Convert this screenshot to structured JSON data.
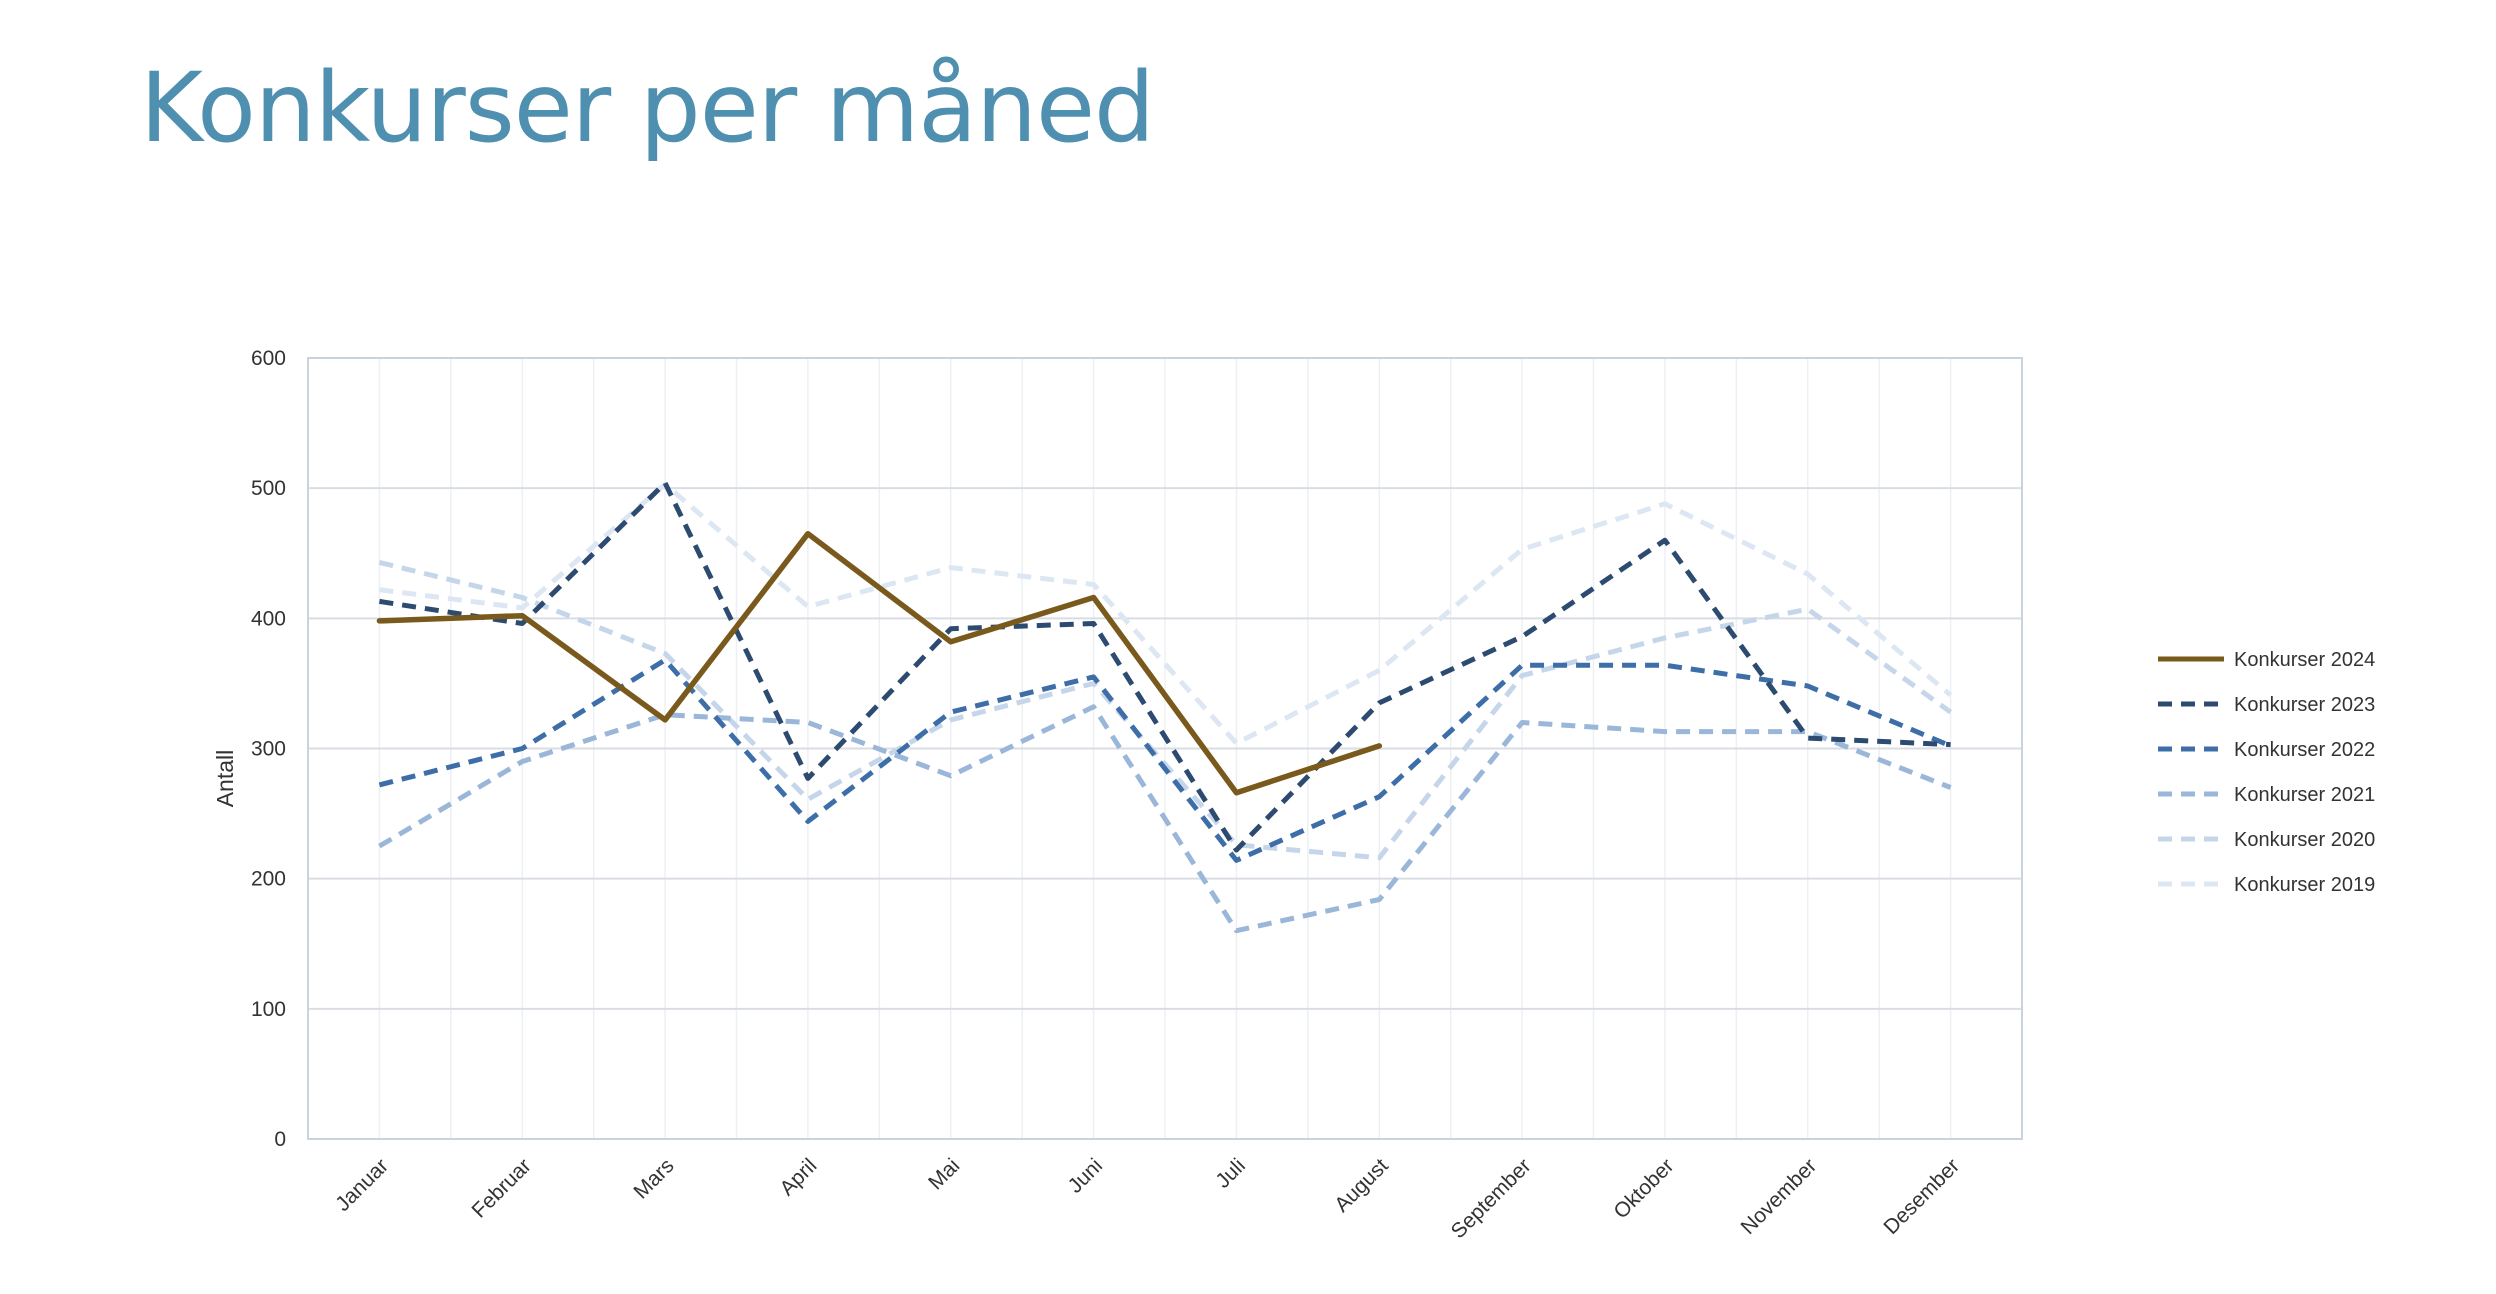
{
  "page": {
    "title": "Konkurser per måned"
  },
  "colors": {
    "title": "#4f8fb0",
    "grid": "#d9dde3",
    "vgrid": "#edf0f3",
    "frame": "#c9d3de"
  },
  "chart_data": {
    "type": "line",
    "title": "",
    "xlabel": "",
    "ylabel": "Antall",
    "ylim": [
      0,
      600
    ],
    "yticks": [
      0,
      100,
      200,
      300,
      400,
      500,
      600
    ],
    "grid": true,
    "legend_position": "right",
    "categories": [
      "Januar",
      "Februar",
      "Mars",
      "April",
      "Mai",
      "Juni",
      "Juli",
      "August",
      "September",
      "Oktober",
      "November",
      "Desember"
    ],
    "series": [
      {
        "name": "Konkurser 2024",
        "color": "#7a5a1c",
        "dashed": false,
        "values": [
          398,
          402,
          322,
          465,
          382,
          416,
          266,
          302,
          null,
          null,
          null,
          null
        ]
      },
      {
        "name": "Konkurser 2023",
        "color": "#2d4b70",
        "dashed": true,
        "values": [
          413,
          396,
          504,
          277,
          392,
          396,
          222,
          335,
          386,
          460,
          308,
          303
        ]
      },
      {
        "name": "Konkurser 2022",
        "color": "#3e6ea8",
        "dashed": true,
        "values": [
          272,
          300,
          368,
          244,
          328,
          355,
          214,
          263,
          364,
          364,
          348,
          302
        ]
      },
      {
        "name": "Konkurser 2021",
        "color": "#9ab6d9",
        "dashed": true,
        "values": [
          225,
          290,
          326,
          320,
          279,
          332,
          160,
          184,
          320,
          313,
          313,
          270
        ]
      },
      {
        "name": "Konkurser 2020",
        "color": "#c6d6ea",
        "dashed": true,
        "values": [
          443,
          416,
          373,
          261,
          322,
          350,
          226,
          216,
          356,
          385,
          407,
          328
        ]
      },
      {
        "name": "Konkurser 2019",
        "color": "#dde7f3",
        "dashed": true,
        "values": [
          422,
          408,
          503,
          409,
          439,
          426,
          304,
          360,
          453,
          488,
          434,
          341
        ]
      }
    ]
  }
}
